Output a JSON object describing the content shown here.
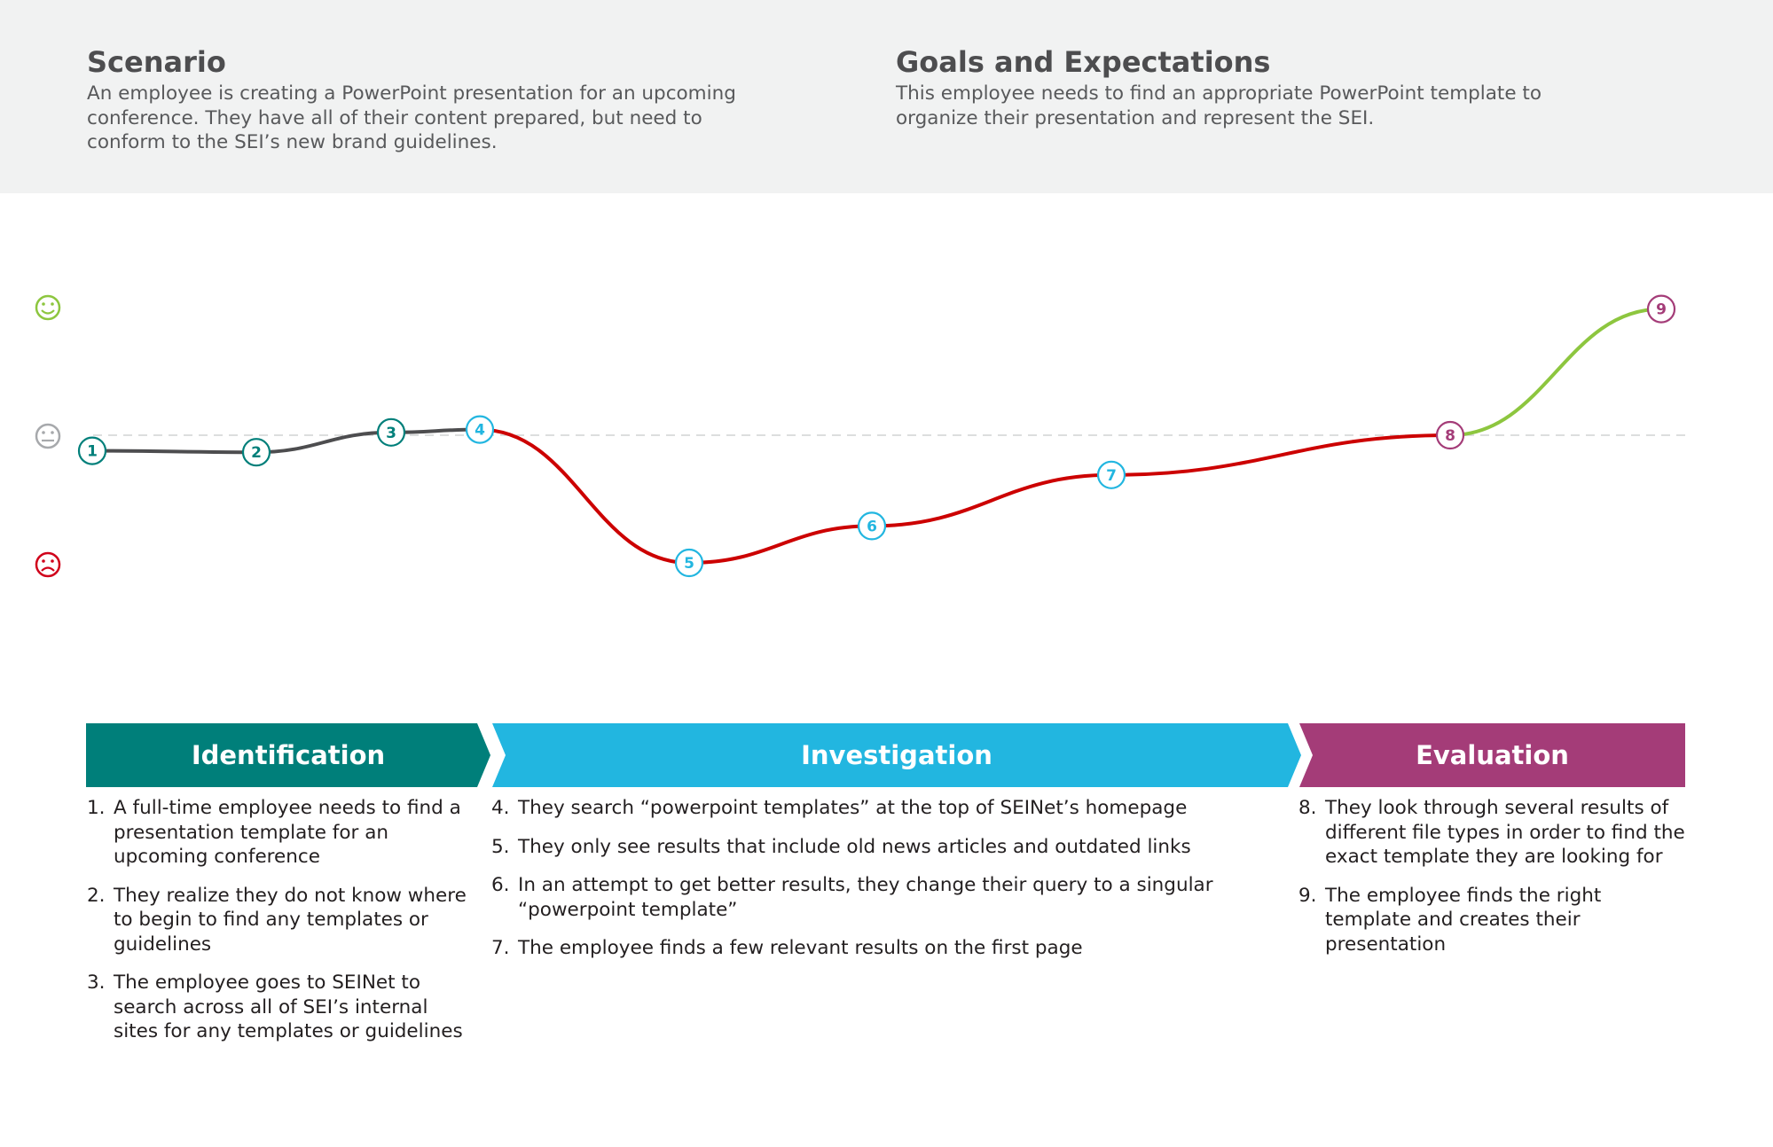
{
  "scenario": {
    "title": "Scenario",
    "text": "An employee is creating a PowerPoint presentation for an upcoming conference. They have all of their content prepared, but need to conform to the SEI’s new brand guidelines."
  },
  "goals": {
    "title": "Goals and Expectations",
    "text": "This employee needs to find an appropriate PowerPoint template to organize their presentation and represent the SEI."
  },
  "emotion_scale": [
    {
      "level": "happy",
      "icon": "smiley-face-icon",
      "color": "#8dc63f"
    },
    {
      "level": "neutral",
      "icon": "neutral-face-icon",
      "color": "#a7a9ac"
    },
    {
      "level": "sad",
      "icon": "sad-face-icon",
      "color": "#d0021b"
    }
  ],
  "colors": {
    "identification": "#007f7a",
    "investigation": "#22b6e0",
    "evaluation": "#a43c78",
    "line_neutral": "#4d4d4f",
    "line_negative": "#cc0000",
    "line_positive": "#8dc63f"
  },
  "chart_data": {
    "type": "line",
    "x": [
      1,
      2,
      3,
      4,
      5,
      6,
      7,
      8,
      9
    ],
    "values": [
      -0.11,
      -0.12,
      0.02,
      0.04,
      -0.9,
      -0.64,
      -0.28,
      0.0,
      0.89
    ],
    "ylim": [
      -1,
      1
    ],
    "neutral_gridline": true,
    "point_labels": [
      "1",
      "2",
      "3",
      "4",
      "5",
      "6",
      "7",
      "8",
      "9"
    ]
  },
  "phases": [
    {
      "label": "Identification"
    },
    {
      "label": "Investigation"
    },
    {
      "label": "Evaluation"
    }
  ],
  "steps": {
    "identification": [
      {
        "num": "1.",
        "text": "A full-time employee needs to find a presentation template for an upcoming conference"
      },
      {
        "num": "2.",
        "text": "They realize they do not know where to begin to find any templates or guidelines"
      },
      {
        "num": "3.",
        "text": "The employee goes to SEINet to search across all of SEI’s internal sites for any templates or guidelines"
      }
    ],
    "investigation": [
      {
        "num": "4.",
        "text": "They search “powerpoint templates” at the top of SEINet’s homepage"
      },
      {
        "num": "5.",
        "text": "They only see results that include old news articles and outdated links"
      },
      {
        "num": "6.",
        "text": "In an attempt to get better results, they change their query to a singular “powerpoint template”"
      },
      {
        "num": "7.",
        "text": "The employee finds a few relevant results on the first page"
      }
    ],
    "evaluation": [
      {
        "num": "8.",
        "text": "They look through several results of different file types in order to find the exact template they are looking for"
      },
      {
        "num": "9.",
        "text": "The employee finds the right template and creates their presentation"
      }
    ]
  }
}
